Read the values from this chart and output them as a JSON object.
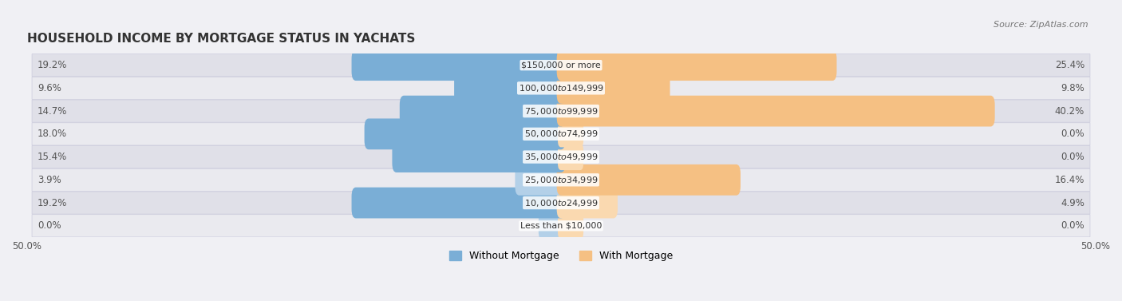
{
  "title": "HOUSEHOLD INCOME BY MORTGAGE STATUS IN YACHATS",
  "source": "Source: ZipAtlas.com",
  "categories": [
    "Less than $10,000",
    "$10,000 to $24,999",
    "$25,000 to $34,999",
    "$35,000 to $49,999",
    "$50,000 to $74,999",
    "$75,000 to $99,999",
    "$100,000 to $149,999",
    "$150,000 or more"
  ],
  "without_mortgage": [
    0.0,
    19.2,
    3.9,
    15.4,
    18.0,
    14.7,
    9.6,
    19.2
  ],
  "with_mortgage": [
    0.0,
    4.9,
    16.4,
    0.0,
    0.0,
    40.2,
    9.8,
    25.4
  ],
  "without_mortgage_color": "#7aaed6",
  "without_mortgage_color_light": "#b3d0e8",
  "with_mortgage_color": "#f5c083",
  "with_mortgage_color_light": "#fad9b0",
  "axis_limit": 50.0,
  "bg_color": "#f0f0f4",
  "row_bg_color_1": "#eaeaef",
  "row_bg_color_2": "#e0e0e8",
  "title_fontsize": 11,
  "label_fontsize": 8.5,
  "tick_fontsize": 8.5,
  "legend_fontsize": 9
}
